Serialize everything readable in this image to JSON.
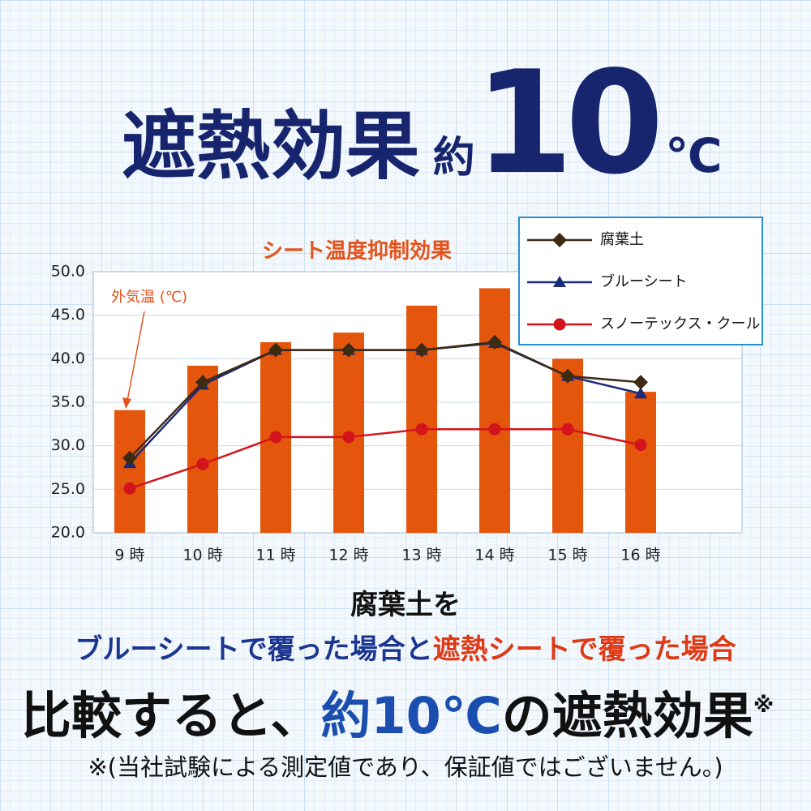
{
  "headline": {
    "text": "遮熱効果",
    "prefix": "約",
    "number": "10",
    "unit": "℃"
  },
  "chart_data": {
    "type": "bar",
    "title": "シート温度抑制効果",
    "annotation": "外気温 (℃)",
    "categories": [
      "9 時",
      "10 時",
      "11 時",
      "12 時",
      "13 時",
      "14 時",
      "15 時",
      "16 時"
    ],
    "bars": {
      "color": "#e3560c",
      "values": [
        34.1,
        39.2,
        41.9,
        43.0,
        46.1,
        48.1,
        40.0,
        36.2
      ]
    },
    "series": [
      {
        "name": "腐葉土",
        "color": "#3d2a12",
        "marker": "diamond",
        "values": [
          28.6,
          37.3,
          41.0,
          41.0,
          41.0,
          41.9,
          38.0,
          37.3
        ]
      },
      {
        "name": "ブルーシート",
        "color": "#1c2a7a",
        "marker": "triangle",
        "values": [
          28.0,
          37.0,
          41.0,
          41.0,
          41.0,
          41.8,
          38.0,
          36.0
        ]
      },
      {
        "name": "スノーテックス・クール",
        "color": "#d4141c",
        "marker": "circle",
        "values": [
          25.1,
          27.9,
          31.0,
          31.0,
          31.9,
          31.9,
          31.9,
          30.1
        ]
      }
    ],
    "ylim": [
      20,
      50
    ],
    "yticks": [
      {
        "value": 20,
        "label": "20.0"
      },
      {
        "value": 25,
        "label": "25.0"
      },
      {
        "value": 30,
        "label": "30.0"
      },
      {
        "value": 35,
        "label": "35.0"
      },
      {
        "value": 40,
        "label": "40.0"
      },
      {
        "value": 45,
        "label": "45.0"
      },
      {
        "value": 50,
        "label": "50.0"
      }
    ],
    "grid": true,
    "legend": "top-right"
  },
  "description": {
    "line1": "腐葉土を",
    "line2a": "ブルーシートで覆った場合と",
    "line2b": "遮熱シートで覆った場合",
    "line3a": "比較すると、",
    "line3b": "約10℃",
    "line3c": "の遮熱効果",
    "mark": "※",
    "note": "※(当社試験による測定値であり、保証値ではございません。)"
  }
}
